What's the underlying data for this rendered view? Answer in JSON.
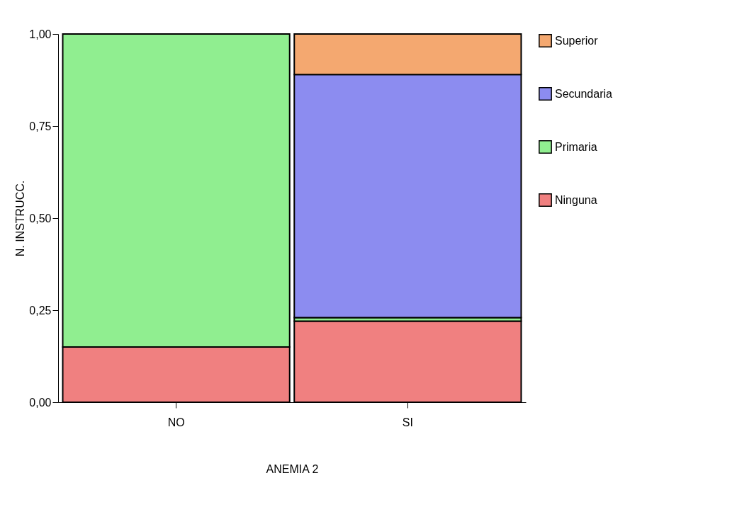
{
  "chart_data": {
    "type": "bar",
    "stacked": true,
    "xlabel": "ANEMIA 2",
    "ylabel": "N. INSTRUCC.",
    "categories": [
      "NO",
      "SI"
    ],
    "series": [
      {
        "name": "Ninguna",
        "color": "#f08080",
        "values": [
          0.15,
          0.22
        ]
      },
      {
        "name": "Primaria",
        "color": "#90ee90",
        "values": [
          0.85,
          0.01
        ]
      },
      {
        "name": "Secundaria",
        "color": "#8c8cf0",
        "values": [
          null,
          0.66
        ]
      },
      {
        "name": "Superior",
        "color": "#f4a870",
        "values": [
          null,
          0.11
        ]
      }
    ],
    "ylim": [
      0,
      1
    ],
    "yticks": [
      {
        "value": 0,
        "label": "0,00"
      },
      {
        "value": 0.25,
        "label": "0,25"
      },
      {
        "value": 0.5,
        "label": "0,50"
      },
      {
        "value": 0.75,
        "label": "0,75"
      },
      {
        "value": 1,
        "label": "1,00"
      }
    ],
    "legend": "right",
    "grid": false
  }
}
